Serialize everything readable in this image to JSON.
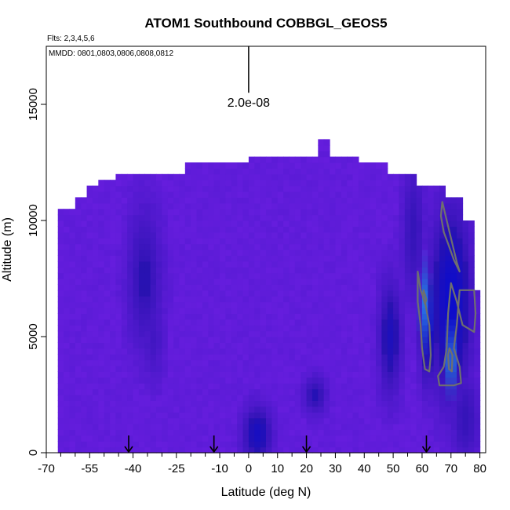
{
  "chart_data": {
    "type": "heatmap",
    "title": "ATOM1 Southbound COBBGL_GEOS5",
    "flights_note": "Flts: 2,3,4,5,6",
    "dates_note": "MMDD: 0801,0803,0806,0808,0812",
    "xlabel": "Latitude (deg N)",
    "ylabel": "Altitude (m)",
    "xlim": [
      -70,
      82
    ],
    "ylim": [
      0,
      17500
    ],
    "x_ticks": [
      -70,
      -55,
      -40,
      -25,
      -10,
      0,
      10,
      20,
      30,
      40,
      50,
      60,
      70,
      80
    ],
    "x_minor_ticks": [
      -65,
      -60,
      -50,
      -45,
      -35,
      -30,
      -20,
      -15,
      -5,
      5,
      15,
      25,
      35,
      45,
      55,
      65,
      75
    ],
    "y_ticks": [
      0,
      5000,
      10000,
      15000
    ],
    "scale_bar": {
      "label": "2.0e-08",
      "latitude": 0,
      "alt_top": 17500,
      "alt_bottom": 15500
    },
    "profile_arrows_lat": [
      -41.5,
      -12,
      20,
      61.5
    ],
    "field": {
      "lat_start": -66,
      "lat_end": 80,
      "lat_step": 2,
      "alt_step": 250,
      "columns_top_alt": [
        {
          "lat_min": -66,
          "lat_max": -60,
          "top": 10500
        },
        {
          "lat_min": -60,
          "lat_max": -56,
          "top": 11000
        },
        {
          "lat_min": -56,
          "lat_max": -52,
          "top": 11500
        },
        {
          "lat_min": -52,
          "lat_max": -46,
          "top": 11750
        },
        {
          "lat_min": -46,
          "lat_max": -22,
          "top": 12000
        },
        {
          "lat_min": -22,
          "lat_max": 0,
          "top": 12500
        },
        {
          "lat_min": 0,
          "lat_max": 24,
          "top": 12750
        },
        {
          "lat_min": 24,
          "lat_max": 28,
          "top": 13500
        },
        {
          "lat_min": 28,
          "lat_max": 38,
          "top": 12750
        },
        {
          "lat_min": 38,
          "lat_max": 48,
          "top": 12500
        },
        {
          "lat_min": 48,
          "lat_max": 58,
          "top": 12000
        },
        {
          "lat_min": 58,
          "lat_max": 68,
          "top": 11500
        },
        {
          "lat_min": 68,
          "lat_max": 74,
          "top": 11000
        },
        {
          "lat_min": 74,
          "lat_max": 78,
          "top": 10000
        },
        {
          "lat_min": 78,
          "lat_max": 80,
          "top": 7000
        }
      ],
      "colors": {
        "base": "#6a1ee0",
        "mid": "#4a18cc",
        "dark": "#2a12b0",
        "deep": "#0c0ccc",
        "light": "#2a7be8"
      },
      "dark_regions": [
        {
          "lat": -36,
          "alt": 7500,
          "dlat": 6,
          "dalt": 3000,
          "strength": 0.55
        },
        {
          "lat": -33,
          "alt": 5000,
          "dlat": 4,
          "dalt": 2000,
          "strength": 0.35
        },
        {
          "lat": 3,
          "alt": 800,
          "dlat": 5,
          "dalt": 1200,
          "strength": 0.8
        },
        {
          "lat": 23,
          "alt": 2500,
          "dlat": 4,
          "dalt": 800,
          "strength": 0.6
        },
        {
          "lat": 49,
          "alt": 5000,
          "dlat": 4,
          "dalt": 2500,
          "strength": 0.7
        },
        {
          "lat": 57,
          "alt": 9500,
          "dlat": 4,
          "dalt": 3000,
          "strength": 0.5
        },
        {
          "lat": 70,
          "alt": 6500,
          "dlat": 7,
          "dalt": 4000,
          "strength": 1.0
        },
        {
          "lat": 62,
          "alt": 5500,
          "dlat": 3,
          "dalt": 2500,
          "strength": 0.9
        },
        {
          "lat": 75,
          "alt": 1500,
          "dlat": 5,
          "dalt": 2000,
          "strength": 0.5
        }
      ],
      "light_regions": [
        {
          "lat": 61,
          "alt": 6500,
          "dlat": 1.6,
          "dalt": 1500,
          "strength": 0.9
        },
        {
          "lat": 70,
          "alt": 4000,
          "dlat": 2,
          "dalt": 1200,
          "strength": 0.9
        }
      ]
    },
    "contours": [
      {
        "name": "contour-upper-right",
        "points": [
          [
            67,
            10800
          ],
          [
            69.5,
            9500
          ],
          [
            72,
            8200
          ],
          [
            73,
            7800
          ],
          [
            71,
            8300
          ],
          [
            69,
            9000
          ],
          [
            67.5,
            9500
          ],
          [
            66.5,
            10200
          ]
        ]
      },
      {
        "name": "contour-left-lobe",
        "points": [
          [
            58.5,
            7800
          ],
          [
            59.5,
            7000
          ],
          [
            61,
            6500
          ],
          [
            62.5,
            5500
          ],
          [
            63,
            4200
          ],
          [
            62.5,
            3500
          ],
          [
            61,
            3600
          ],
          [
            60,
            4500
          ],
          [
            59.5,
            5500
          ],
          [
            58.5,
            6500
          ]
        ]
      },
      {
        "name": "contour-right-lobe",
        "points": [
          [
            70,
            7300
          ],
          [
            72,
            6500
          ],
          [
            74,
            5500
          ],
          [
            78,
            5200
          ],
          [
            78.5,
            6000
          ],
          [
            78,
            7000
          ],
          [
            75,
            7000
          ],
          [
            73,
            7000
          ],
          [
            72,
            5500
          ],
          [
            71,
            4500
          ],
          [
            73,
            3700
          ],
          [
            73.5,
            3000
          ],
          [
            71,
            2900
          ],
          [
            66,
            2900
          ],
          [
            65.5,
            3300
          ],
          [
            67.5,
            3700
          ],
          [
            68.5,
            4500
          ],
          [
            69,
            6000
          ]
        ]
      },
      {
        "name": "contour-inner-left",
        "points": [
          [
            60.5,
            7000
          ],
          [
            61.5,
            6600
          ],
          [
            61,
            6400
          ],
          [
            60.3,
            6700
          ]
        ]
      },
      {
        "name": "contour-inner-right",
        "points": [
          [
            69.5,
            4500
          ],
          [
            70.5,
            4200
          ],
          [
            70.3,
            3500
          ],
          [
            69.3,
            3600
          ],
          [
            69,
            4200
          ]
        ]
      }
    ]
  }
}
